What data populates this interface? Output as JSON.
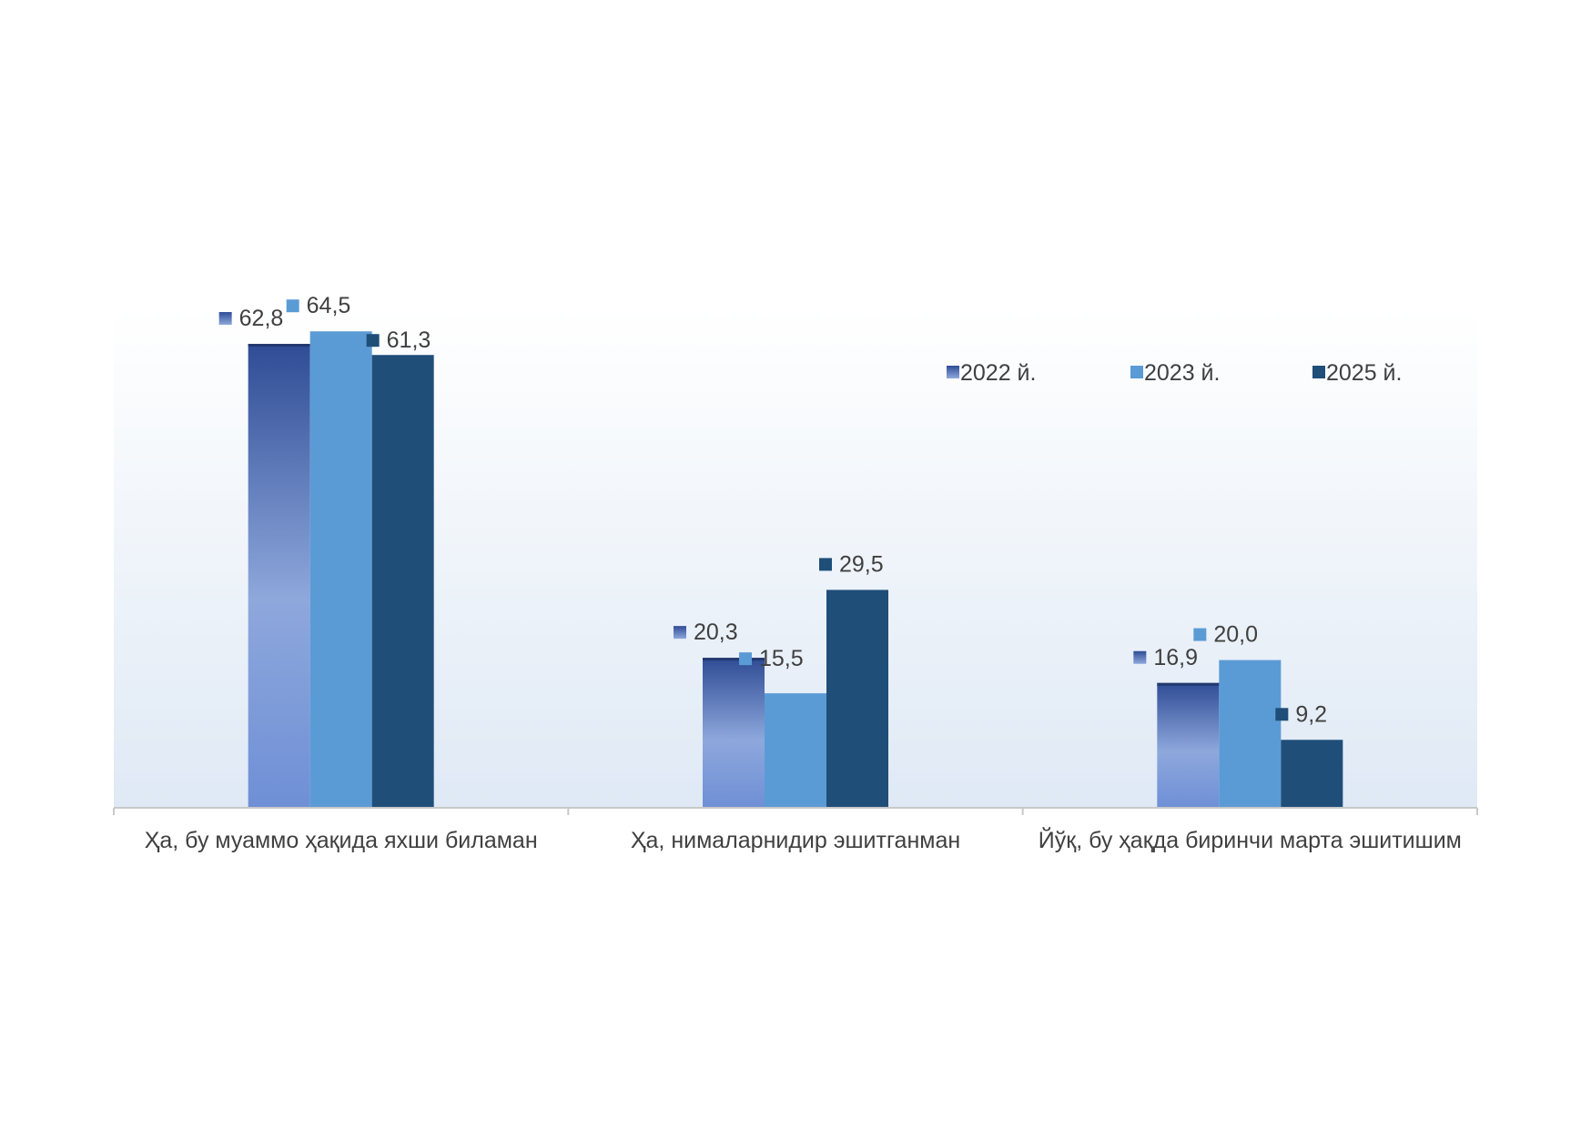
{
  "chart_data": {
    "type": "bar",
    "title": "",
    "xlabel": "",
    "ylabel": "",
    "categories": [
      "Ҳа, бу муаммо ҳақида яхши биламан",
      "Ҳа, нималарнидир эшитганман",
      "Йўқ, бу ҳақда биринчи марта эшитишим"
    ],
    "series": [
      {
        "name": "2022 й.",
        "values": [
          62.8,
          20.3,
          16.9
        ],
        "labels": [
          "62,8",
          "20,3",
          "16,9"
        ],
        "color": "#3a5aa8",
        "gradient": true
      },
      {
        "name": "2023 й.",
        "values": [
          64.5,
          15.5,
          20.0
        ],
        "labels": [
          "64,5",
          "15,5",
          "20,0"
        ],
        "color": "#5b9bd5"
      },
      {
        "name": "2025 й.",
        "values": [
          61.3,
          29.5,
          9.2
        ],
        "labels": [
          "61,3",
          "29,5",
          "9,2"
        ],
        "color": "#1f4e79"
      }
    ],
    "ylim": [
      0,
      66.5
    ],
    "grid": false,
    "legend": "top-right",
    "data_labels": true
  }
}
